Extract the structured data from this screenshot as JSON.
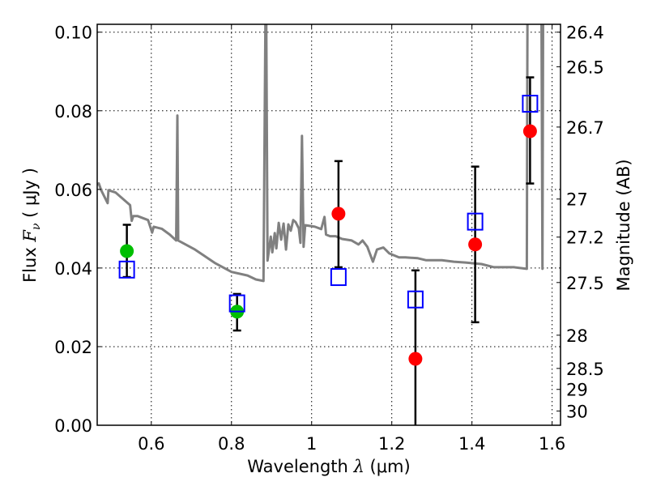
{
  "chart_data": {
    "type": "scatter",
    "title": "",
    "xlabel": "Wavelength  λ (μm)",
    "xlabel_parts": {
      "text": "Wavelength  ",
      "symbol": "λ",
      "unit": " (μm)"
    },
    "ylabel": "Flux  Fν  ( μJy )",
    "ylabel_parts": {
      "text": "Flux  ",
      "symbol": "F",
      "subscript": "ν",
      "unit": "  ( μJy )"
    },
    "y2label": "Magnitude (AB)",
    "xlim": [
      0.465,
      1.621
    ],
    "ylim": [
      0.0,
      0.102
    ],
    "grid": true,
    "x_ticks": [
      {
        "value": 0.6,
        "label": "0.6"
      },
      {
        "value": 0.8,
        "label": "0.8"
      },
      {
        "value": 1.0,
        "label": "1"
      },
      {
        "value": 1.2,
        "label": "1.2"
      },
      {
        "value": 1.4,
        "label": "1.4"
      },
      {
        "value": 1.6,
        "label": "1.6"
      }
    ],
    "y_ticks": [
      {
        "value": 0.0,
        "label": "0.00"
      },
      {
        "value": 0.02,
        "label": "0.02"
      },
      {
        "value": 0.04,
        "label": "0.04"
      },
      {
        "value": 0.06,
        "label": "0.06"
      },
      {
        "value": 0.08,
        "label": "0.08"
      },
      {
        "value": 0.1,
        "label": "0.10"
      }
    ],
    "mag_zeropoint": 23.9,
    "y2_ticks": [
      {
        "value": 26.4,
        "label": "26.4"
      },
      {
        "value": 26.5,
        "label": "26.5"
      },
      {
        "value": 26.7,
        "label": "26.7"
      },
      {
        "value": 27.0,
        "label": "27"
      },
      {
        "value": 27.2,
        "label": "27.2"
      },
      {
        "value": 27.5,
        "label": "27.5"
      },
      {
        "value": 28.0,
        "label": "28"
      },
      {
        "value": 28.5,
        "label": "28.5"
      },
      {
        "value": 29.0,
        "label": "29"
      },
      {
        "value": 30.0,
        "label": "30"
      }
    ],
    "series": [
      {
        "name": "model spectrum",
        "kind": "line",
        "color": "#808080",
        "points": [
          [
            0.465,
            0.0612
          ],
          [
            0.469,
            0.0615
          ],
          [
            0.475,
            0.0598
          ],
          [
            0.491,
            0.0565
          ],
          [
            0.493,
            0.0598
          ],
          [
            0.511,
            0.0592
          ],
          [
            0.547,
            0.056
          ],
          [
            0.551,
            0.052
          ],
          [
            0.555,
            0.0532
          ],
          [
            0.566,
            0.0532
          ],
          [
            0.592,
            0.0522
          ],
          [
            0.602,
            0.049
          ],
          [
            0.606,
            0.0505
          ],
          [
            0.626,
            0.05
          ],
          [
            0.646,
            0.0485
          ],
          [
            0.662,
            0.047
          ],
          [
            0.665,
            0.0788
          ],
          [
            0.667,
            0.047
          ],
          [
            0.671,
            0.0468
          ],
          [
            0.709,
            0.0447
          ],
          [
            0.76,
            0.0412
          ],
          [
            0.8,
            0.039
          ],
          [
            0.84,
            0.0381
          ],
          [
            0.861,
            0.0371
          ],
          [
            0.88,
            0.0367
          ],
          [
            0.886,
            0.12
          ],
          [
            0.89,
            0.0419
          ],
          [
            0.898,
            0.048
          ],
          [
            0.902,
            0.044
          ],
          [
            0.908,
            0.0489
          ],
          [
            0.912,
            0.045
          ],
          [
            0.918,
            0.0515
          ],
          [
            0.924,
            0.0472
          ],
          [
            0.93,
            0.0513
          ],
          [
            0.936,
            0.0447
          ],
          [
            0.942,
            0.0511
          ],
          [
            0.948,
            0.0495
          ],
          [
            0.954,
            0.0522
          ],
          [
            0.96,
            0.0517
          ],
          [
            0.968,
            0.0501
          ],
          [
            0.972,
            0.0464
          ],
          [
            0.976,
            0.0736
          ],
          [
            0.98,
            0.0454
          ],
          [
            0.984,
            0.0509
          ],
          [
            1.008,
            0.0505
          ],
          [
            1.024,
            0.0499
          ],
          [
            1.032,
            0.053
          ],
          [
            1.036,
            0.0485
          ],
          [
            1.046,
            0.0481
          ],
          [
            1.06,
            0.0481
          ],
          [
            1.076,
            0.0474
          ],
          [
            1.1,
            0.047
          ],
          [
            1.117,
            0.046
          ],
          [
            1.127,
            0.047
          ],
          [
            1.139,
            0.0454
          ],
          [
            1.153,
            0.0416
          ],
          [
            1.163,
            0.0447
          ],
          [
            1.179,
            0.0452
          ],
          [
            1.194,
            0.0437
          ],
          [
            1.218,
            0.0427
          ],
          [
            1.234,
            0.0427
          ],
          [
            1.265,
            0.0425
          ],
          [
            1.285,
            0.042
          ],
          [
            1.325,
            0.042
          ],
          [
            1.355,
            0.0416
          ],
          [
            1.384,
            0.0414
          ],
          [
            1.424,
            0.041
          ],
          [
            1.455,
            0.0402
          ],
          [
            1.505,
            0.0402
          ],
          [
            1.537,
            0.0398
          ],
          [
            1.539,
            0.12
          ],
          [
            1.573,
            0.12
          ],
          [
            1.576,
            0.0398
          ],
          [
            1.578,
            0.12
          ]
        ]
      },
      {
        "name": "observed (detections)",
        "kind": "errorbar-circle",
        "points": [
          {
            "x": 0.539,
            "y": 0.0443,
            "yerr_low": 0.0377,
            "yerr_high": 0.051,
            "color": "#00bf00"
          },
          {
            "x": 0.814,
            "y": 0.0289,
            "yerr_low": 0.0241,
            "yerr_high": 0.0334,
            "color": "#00bf00"
          },
          {
            "x": 1.067,
            "y": 0.0538,
            "yerr_low": 0.0402,
            "yerr_high": 0.0672,
            "color": "#ff0000"
          },
          {
            "x": 1.259,
            "y": 0.0169,
            "yerr_low": -0.01,
            "yerr_high": 0.0394,
            "color": "#ff0000"
          },
          {
            "x": 1.408,
            "y": 0.046,
            "yerr_low": 0.0262,
            "yerr_high": 0.0658,
            "color": "#ff0000"
          },
          {
            "x": 1.545,
            "y": 0.0748,
            "yerr_low": 0.0615,
            "yerr_high": 0.0885,
            "color": "#ff0000"
          }
        ]
      },
      {
        "name": "model photometry",
        "kind": "open-square",
        "color": "#0000ff",
        "points": [
          {
            "x": 0.539,
            "y": 0.0396
          },
          {
            "x": 0.814,
            "y": 0.031
          },
          {
            "x": 1.067,
            "y": 0.0377
          },
          {
            "x": 1.259,
            "y": 0.032
          },
          {
            "x": 1.408,
            "y": 0.0518
          },
          {
            "x": 1.545,
            "y": 0.0818
          }
        ]
      }
    ]
  }
}
